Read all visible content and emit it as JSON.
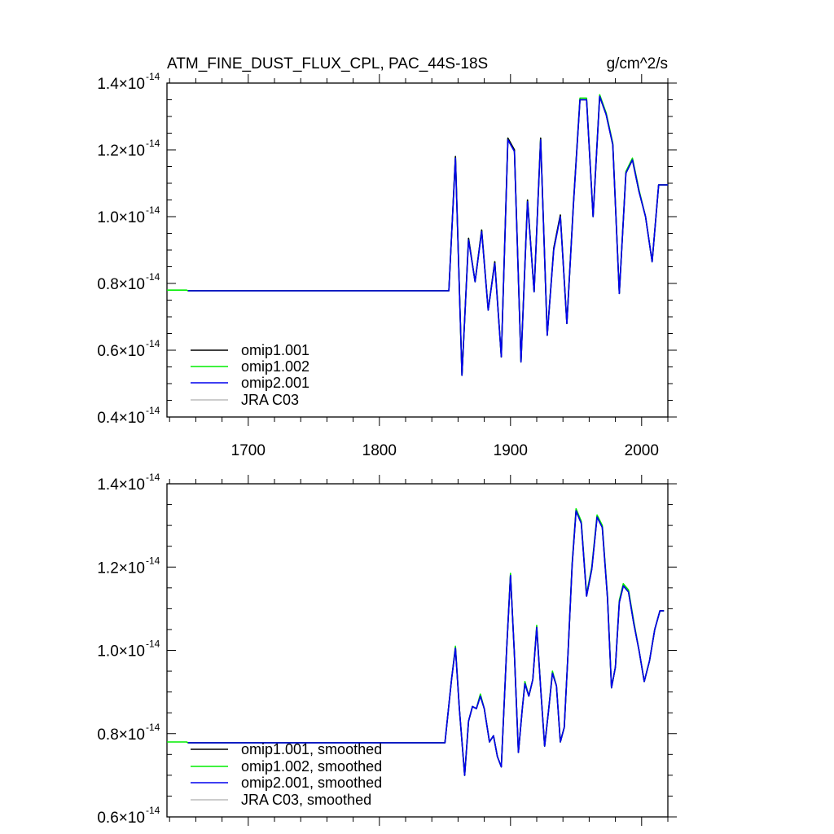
{
  "figure": {
    "title": "ATM_FINE_DUST_FLUX_CPL, PAC_44S-18S",
    "units": "g/cm^2/s"
  },
  "colors": {
    "omip1_001": "#000000",
    "omip1_002": "#00ee00",
    "omip2_001": "#0000ee",
    "jra_c03": "#bbbbbb"
  },
  "chart_data": [
    {
      "type": "line",
      "name": "raw",
      "xlim": [
        1638,
        2020
      ],
      "ylim": [
        0.4,
        1.4
      ],
      "y_scale_note": "values are in units of 10^-14",
      "x_ticks": [
        {
          "value": 1700,
          "label": "1700"
        },
        {
          "value": 1800,
          "label": "1800"
        },
        {
          "value": 1900,
          "label": "1900"
        },
        {
          "value": 2000,
          "label": "2000"
        }
      ],
      "y_ticks": [
        {
          "value": 0.4,
          "mant": "0.4×10",
          "exp": "-14"
        },
        {
          "value": 0.6,
          "mant": "0.6×10",
          "exp": "-14"
        },
        {
          "value": 0.8,
          "mant": "0.8×10",
          "exp": "-14"
        },
        {
          "value": 1.0,
          "mant": "1.0×10",
          "exp": "-14"
        },
        {
          "value": 1.2,
          "mant": "1.2×10",
          "exp": "-14"
        },
        {
          "value": 1.4,
          "mant": "1.4×10",
          "exp": "-14"
        }
      ],
      "legend": [
        "omip1.001",
        "omip1.002",
        "omip2.001",
        "JRA C03"
      ],
      "legend_position": "bottom-left",
      "x": [
        1638,
        1653,
        1654,
        1700,
        1800,
        1853,
        1858,
        1863,
        1868,
        1873,
        1878,
        1883,
        1888,
        1893,
        1898,
        1903,
        1908,
        1913,
        1918,
        1923,
        1928,
        1933,
        1938,
        1943,
        1948,
        1953,
        1958,
        1963,
        1968,
        1973,
        1978,
        1983,
        1988,
        1993,
        1998,
        2003,
        2008,
        2013,
        2020
      ],
      "series": [
        {
          "key": "omip1_002",
          "start": 0,
          "y": [
            0.78,
            0.78,
            0.778,
            0.778,
            0.778,
            0.778,
            1.18,
            0.525,
            0.935,
            0.805,
            0.96,
            0.72,
            0.865,
            0.58,
            1.235,
            1.2,
            0.565,
            1.05,
            0.775,
            1.235,
            0.645,
            0.905,
            1.005,
            0.68,
            1.04,
            1.355,
            1.355,
            1.0,
            1.365,
            1.31,
            1.22,
            0.77,
            1.135,
            1.175,
            1.08,
            1.0,
            0.865,
            1.095,
            1.095
          ]
        },
        {
          "key": "omip1_001",
          "start": 2,
          "y": [
            0.78,
            0.78,
            0.778,
            0.778,
            0.778,
            0.778,
            1.18,
            0.525,
            0.935,
            0.805,
            0.96,
            0.72,
            0.865,
            0.58,
            1.235,
            1.2,
            0.565,
            1.05,
            0.775,
            1.235,
            0.645,
            0.905,
            1.005,
            0.68,
            1.04,
            1.35,
            1.35,
            1.0,
            1.36,
            1.305,
            1.215,
            0.77,
            1.13,
            1.17,
            1.075,
            1.0,
            0.865,
            1.095,
            1.095
          ]
        },
        {
          "key": "omip2_001",
          "start": 2,
          "y": [
            0.78,
            0.78,
            0.778,
            0.778,
            0.778,
            0.778,
            1.175,
            0.525,
            0.93,
            0.805,
            0.955,
            0.72,
            0.86,
            0.58,
            1.23,
            1.195,
            0.565,
            1.045,
            0.775,
            1.23,
            0.645,
            0.9,
            1.0,
            0.68,
            1.035,
            1.35,
            1.35,
            1.0,
            1.36,
            1.305,
            1.215,
            0.77,
            1.13,
            1.17,
            1.075,
            1.0,
            0.865,
            1.095,
            1.095
          ]
        }
      ]
    },
    {
      "type": "line",
      "name": "smoothed",
      "xlim": [
        1638,
        2020
      ],
      "ylim": [
        0.6,
        1.4
      ],
      "y_scale_note": "values are in units of 10^-14",
      "x_ticks": [
        {
          "value": 1700,
          "label": ""
        },
        {
          "value": 1800,
          "label": ""
        },
        {
          "value": 1900,
          "label": ""
        },
        {
          "value": 2000,
          "label": ""
        }
      ],
      "y_ticks": [
        {
          "value": 0.6,
          "mant": "0.6×10",
          "exp": "-14"
        },
        {
          "value": 0.8,
          "mant": "0.8×10",
          "exp": "-14"
        },
        {
          "value": 1.0,
          "mant": "1.0×10",
          "exp": "-14"
        },
        {
          "value": 1.2,
          "mant": "1.2×10",
          "exp": "-14"
        },
        {
          "value": 1.4,
          "mant": "1.4×10",
          "exp": "-14"
        }
      ],
      "legend": [
        "omip1.001, smoothed",
        "omip1.002, smoothed",
        "omip2.001, smoothed",
        "JRA C03, smoothed"
      ],
      "legend_position": "bottom-left",
      "x": [
        1638,
        1653,
        1654,
        1700,
        1800,
        1850,
        1855,
        1858,
        1861,
        1865,
        1868,
        1871,
        1874,
        1877,
        1880,
        1884,
        1887,
        1890,
        1893,
        1897,
        1900,
        1903,
        1906,
        1909,
        1911,
        1914,
        1917,
        1920,
        1923,
        1926,
        1929,
        1932,
        1935,
        1938,
        1941,
        1944,
        1947,
        1950,
        1954,
        1958,
        1962,
        1966,
        1970,
        1974,
        1977,
        1980,
        1983,
        1986,
        1990,
        1994,
        1998,
        2002,
        2006,
        2010,
        2014,
        2017
      ],
      "series": [
        {
          "key": "omip1_002",
          "start": 0,
          "y": [
            0.78,
            0.78,
            0.778,
            0.778,
            0.778,
            0.778,
            0.93,
            1.01,
            0.86,
            0.7,
            0.83,
            0.865,
            0.86,
            0.895,
            0.86,
            0.78,
            0.795,
            0.745,
            0.72,
            1.0,
            1.185,
            0.99,
            0.755,
            0.86,
            0.925,
            0.89,
            0.93,
            1.06,
            0.91,
            0.77,
            0.855,
            0.95,
            0.915,
            0.78,
            0.815,
            1.0,
            1.21,
            1.34,
            1.31,
            1.135,
            1.2,
            1.325,
            1.3,
            1.13,
            0.91,
            0.96,
            1.12,
            1.16,
            1.145,
            1.07,
            1.0,
            0.925,
            0.975,
            1.05,
            1.095,
            1.095
          ]
        },
        {
          "key": "omip1_001",
          "start": 2,
          "y": [
            0.78,
            0.78,
            0.778,
            0.778,
            0.778,
            0.778,
            0.93,
            1.005,
            0.86,
            0.7,
            0.83,
            0.865,
            0.86,
            0.89,
            0.86,
            0.78,
            0.795,
            0.745,
            0.72,
            1.0,
            1.18,
            0.99,
            0.755,
            0.86,
            0.92,
            0.89,
            0.93,
            1.055,
            0.91,
            0.77,
            0.855,
            0.945,
            0.915,
            0.78,
            0.815,
            1.0,
            1.205,
            1.335,
            1.305,
            1.13,
            1.195,
            1.32,
            1.295,
            1.125,
            0.91,
            0.96,
            1.115,
            1.155,
            1.14,
            1.065,
            1.0,
            0.925,
            0.975,
            1.05,
            1.095,
            1.095
          ]
        },
        {
          "key": "omip2_001",
          "start": 2,
          "y": [
            0.78,
            0.78,
            0.778,
            0.778,
            0.778,
            0.778,
            0.93,
            1.005,
            0.86,
            0.7,
            0.83,
            0.865,
            0.86,
            0.89,
            0.86,
            0.78,
            0.795,
            0.745,
            0.72,
            1.0,
            1.18,
            0.99,
            0.755,
            0.86,
            0.92,
            0.89,
            0.93,
            1.055,
            0.91,
            0.77,
            0.855,
            0.945,
            0.915,
            0.78,
            0.815,
            1.0,
            1.205,
            1.335,
            1.305,
            1.13,
            1.195,
            1.32,
            1.295,
            1.125,
            0.91,
            0.96,
            1.115,
            1.155,
            1.14,
            1.065,
            1.0,
            0.925,
            0.975,
            1.05,
            1.095,
            1.095
          ]
        }
      ]
    }
  ]
}
